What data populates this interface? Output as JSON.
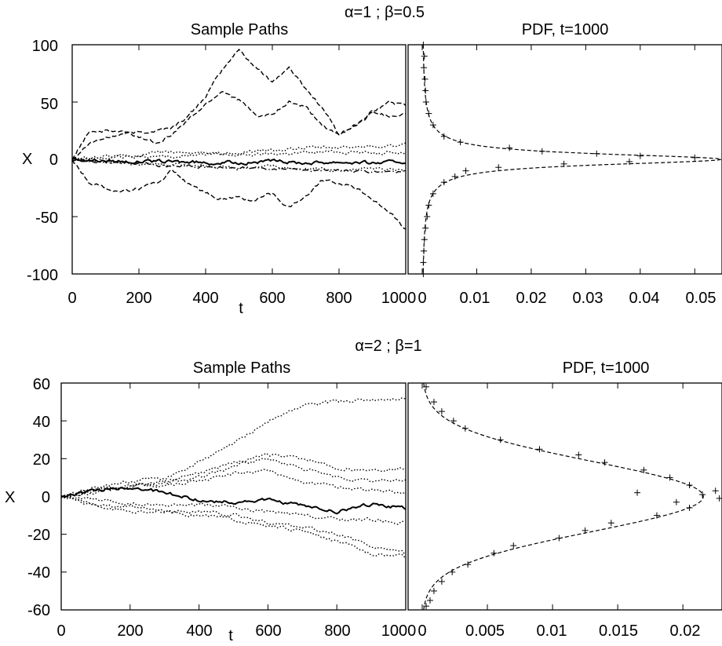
{
  "chart_data": [
    {
      "id": "top",
      "header": "α=1 ; β=0.5",
      "panels": [
        {
          "type": "line",
          "title": "Sample Paths",
          "xlabel": "t",
          "ylabel": "X",
          "xlim": [
            0,
            1000
          ],
          "ylim": [
            -100,
            100
          ],
          "xticks": [
            "0",
            "200",
            "400",
            "600",
            "800",
            "1000"
          ],
          "yticks": [
            "100",
            "50",
            "0",
            "-50",
            "-100"
          ],
          "series": [
            {
              "style": "dash",
              "x": [
                0,
                50,
                150,
                250,
                300,
                350,
                400,
                450,
                500,
                550,
                600,
                650,
                700,
                750,
                800,
                850,
                900,
                950,
                1000
              ],
              "y": [
                0,
                15,
                22,
                25,
                28,
                38,
                55,
                78,
                96,
                80,
                68,
                80,
                62,
                45,
                22,
                30,
                40,
                50,
                47
              ]
            },
            {
              "style": "dash",
              "x": [
                0,
                50,
                150,
                250,
                300,
                350,
                400,
                450,
                500,
                550,
                600,
                650,
                700,
                750,
                800,
                850,
                900,
                950,
                1000
              ],
              "y": [
                0,
                25,
                24,
                15,
                22,
                35,
                48,
                60,
                52,
                38,
                38,
                50,
                45,
                30,
                20,
                30,
                42,
                38,
                40
              ]
            },
            {
              "style": "dot",
              "x": [
                0,
                100,
                200,
                300,
                400,
                500,
                600,
                700,
                800,
                900,
                1000
              ],
              "y": [
                0,
                2,
                4,
                6,
                6,
                5,
                8,
                10,
                10,
                12,
                12
              ]
            },
            {
              "style": "dot",
              "x": [
                0,
                100,
                200,
                300,
                400,
                500,
                600,
                700,
                800,
                900,
                1000
              ],
              "y": [
                0,
                1,
                2,
                3,
                4,
                4,
                5,
                6,
                7,
                6,
                6
              ]
            },
            {
              "style": "solid",
              "x": [
                0,
                100,
                200,
                300,
                400,
                500,
                600,
                700,
                800,
                900,
                1000
              ],
              "y": [
                0,
                -1,
                -2,
                -2,
                -3,
                -3,
                -2,
                -3,
                -2,
                -3,
                -2
              ]
            },
            {
              "style": "dot",
              "x": [
                0,
                100,
                200,
                300,
                400,
                500,
                600,
                700,
                800,
                900,
                1000
              ],
              "y": [
                0,
                -3,
                -5,
                -5,
                -6,
                -7,
                -6,
                -8,
                -9,
                -8,
                -10
              ]
            },
            {
              "style": "dashdot",
              "x": [
                0,
                100,
                200,
                300,
                400,
                500,
                600,
                700,
                800,
                900,
                1000
              ],
              "y": [
                0,
                -2,
                -4,
                -6,
                -7,
                -8,
                -8,
                -9,
                -10,
                -11,
                -11
              ]
            },
            {
              "style": "dash",
              "x": [
                0,
                50,
                100,
                150,
                200,
                250,
                300,
                350,
                400,
                450,
                500,
                550,
                600,
                650,
                700,
                750,
                800,
                850,
                900,
                950,
                1000
              ],
              "y": [
                0,
                -20,
                -25,
                -28,
                -25,
                -22,
                -10,
                -22,
                -30,
                -35,
                -33,
                -36,
                -30,
                -42,
                -32,
                -18,
                -20,
                -25,
                -35,
                -45,
                -62
              ]
            }
          ]
        },
        {
          "type": "line",
          "title": "PDF, t=1000",
          "xlim": [
            0,
            0.055
          ],
          "ylim": [
            -100,
            100
          ],
          "xticks": [
            "0",
            "0.01",
            "0.02",
            "0.03",
            "0.04",
            "0.05"
          ],
          "orientation": "horizontal",
          "curve": {
            "style": "dash",
            "model": "cauchy",
            "scale": 5.8
          },
          "points": [
            {
              "y": 100,
              "x": 0.0002
            },
            {
              "y": 90,
              "x": 0.0004
            },
            {
              "y": 80,
              "x": 0.0003
            },
            {
              "y": 70,
              "x": 0.0005
            },
            {
              "y": 60,
              "x": 0.0006
            },
            {
              "y": 50,
              "x": 0.0007
            },
            {
              "y": 40,
              "x": 0.0012
            },
            {
              "y": 30,
              "x": 0.002
            },
            {
              "y": 20,
              "x": 0.004
            },
            {
              "y": 15,
              "x": 0.007
            },
            {
              "y": 10,
              "x": 0.016
            },
            {
              "y": 7,
              "x": 0.022
            },
            {
              "y": 5,
              "x": 0.032
            },
            {
              "y": 3,
              "x": 0.04
            },
            {
              "y": 1.5,
              "x": 0.05
            },
            {
              "y": -2,
              "x": 0.038
            },
            {
              "y": -4,
              "x": 0.026
            },
            {
              "y": -7,
              "x": 0.014
            },
            {
              "y": -10,
              "x": 0.008
            },
            {
              "y": -15,
              "x": 0.006
            },
            {
              "y": -20,
              "x": 0.004
            },
            {
              "y": -30,
              "x": 0.002
            },
            {
              "y": -40,
              "x": 0.0012
            },
            {
              "y": -50,
              "x": 0.0009
            },
            {
              "y": -60,
              "x": 0.0006
            },
            {
              "y": -70,
              "x": 0.0004
            },
            {
              "y": -80,
              "x": 0.0003
            },
            {
              "y": -90,
              "x": 0.0002
            },
            {
              "y": -100,
              "x": 0.0002
            }
          ]
        }
      ]
    },
    {
      "id": "bottom",
      "header": "α=2 ; β=1",
      "panels": [
        {
          "type": "line",
          "title": "Sample Paths",
          "xlabel": "t",
          "ylabel": "X",
          "xlim": [
            0,
            1000
          ],
          "ylim": [
            -60,
            60
          ],
          "xticks": [
            "0",
            "200",
            "400",
            "600",
            "800",
            "1000"
          ],
          "yticks": [
            "60",
            "40",
            "20",
            "0",
            "-20",
            "-40",
            "-60"
          ],
          "series": [
            {
              "style": "dot",
              "x": [
                0,
                100,
                200,
                300,
                400,
                500,
                600,
                700,
                800,
                900,
                1000
              ],
              "y": [
                0,
                5,
                8,
                10,
                18,
                28,
                40,
                48,
                50,
                51,
                52
              ]
            },
            {
              "style": "dot",
              "x": [
                0,
                100,
                200,
                300,
                400,
                500,
                600,
                700,
                800,
                900,
                1000
              ],
              "y": [
                0,
                4,
                6,
                8,
                12,
                18,
                22,
                20,
                15,
                14,
                15
              ]
            },
            {
              "style": "dot",
              "x": [
                0,
                100,
                200,
                300,
                400,
                500,
                600,
                700,
                800,
                900,
                1000
              ],
              "y": [
                0,
                3,
                5,
                7,
                10,
                16,
                20,
                15,
                10,
                8,
                9
              ]
            },
            {
              "style": "dot",
              "x": [
                0,
                100,
                200,
                300,
                400,
                500,
                600,
                700,
                800,
                900,
                1000
              ],
              "y": [
                0,
                2,
                5,
                6,
                8,
                12,
                14,
                8,
                5,
                3,
                2
              ]
            },
            {
              "style": "solid",
              "x": [
                0,
                100,
                200,
                300,
                400,
                500,
                600,
                700,
                800,
                900,
                1000
              ],
              "y": [
                0,
                3,
                5,
                2,
                -2,
                -3,
                -2,
                -5,
                -8,
                -4,
                -6
              ]
            },
            {
              "style": "dot",
              "x": [
                0,
                100,
                200,
                300,
                400,
                500,
                600,
                700,
                800,
                900,
                1000
              ],
              "y": [
                0,
                -2,
                -4,
                -5,
                -4,
                -6,
                -8,
                -10,
                -12,
                -12,
                -14
              ]
            },
            {
              "style": "dot",
              "x": [
                0,
                100,
                200,
                300,
                400,
                500,
                600,
                700,
                800,
                900,
                1000
              ],
              "y": [
                0,
                -4,
                -6,
                -8,
                -8,
                -10,
                -14,
                -16,
                -20,
                -26,
                -30
              ]
            },
            {
              "style": "dot",
              "x": [
                0,
                100,
                200,
                300,
                400,
                500,
                600,
                700,
                800,
                900,
                1000
              ],
              "y": [
                0,
                -5,
                -8,
                -8,
                -10,
                -12,
                -16,
                -18,
                -24,
                -30,
                -32
              ]
            }
          ]
        },
        {
          "type": "line",
          "title": "PDF, t=1000",
          "xlim": [
            0,
            0.023
          ],
          "ylim": [
            -60,
            60
          ],
          "xticks": [
            "0",
            "0.005",
            "0.01",
            "0.015",
            "0.02"
          ],
          "orientation": "horizontal",
          "curve": {
            "style": "dash",
            "model": "gaussian",
            "sigma": 18.5,
            "mean": 0
          },
          "points": [
            {
              "y": 58,
              "x": 0.0003
            },
            {
              "y": 50,
              "x": 0.0009
            },
            {
              "y": 45,
              "x": 0.0015
            },
            {
              "y": 40,
              "x": 0.0024
            },
            {
              "y": 36,
              "x": 0.0033
            },
            {
              "y": 30,
              "x": 0.006
            },
            {
              "y": 25,
              "x": 0.009
            },
            {
              "y": 22,
              "x": 0.012
            },
            {
              "y": 18,
              "x": 0.014
            },
            {
              "y": 14,
              "x": 0.017
            },
            {
              "y": 10,
              "x": 0.019
            },
            {
              "y": 6,
              "x": 0.0205
            },
            {
              "y": 3,
              "x": 0.0225
            },
            {
              "y": 2,
              "x": 0.0165
            },
            {
              "y": 1,
              "x": 0.0215
            },
            {
              "y": -1,
              "x": 0.0228
            },
            {
              "y": -3,
              "x": 0.0195
            },
            {
              "y": -6,
              "x": 0.0205
            },
            {
              "y": -10,
              "x": 0.018
            },
            {
              "y": -14,
              "x": 0.0145
            },
            {
              "y": -18,
              "x": 0.0125
            },
            {
              "y": -22,
              "x": 0.0105
            },
            {
              "y": -26,
              "x": 0.007
            },
            {
              "y": -30,
              "x": 0.0055
            },
            {
              "y": -36,
              "x": 0.0035
            },
            {
              "y": -40,
              "x": 0.0023
            },
            {
              "y": -45,
              "x": 0.0015
            },
            {
              "y": -50,
              "x": 0.0009
            },
            {
              "y": -55,
              "x": 0.0006
            },
            {
              "y": -58,
              "x": 0.0003
            }
          ]
        }
      ]
    }
  ]
}
